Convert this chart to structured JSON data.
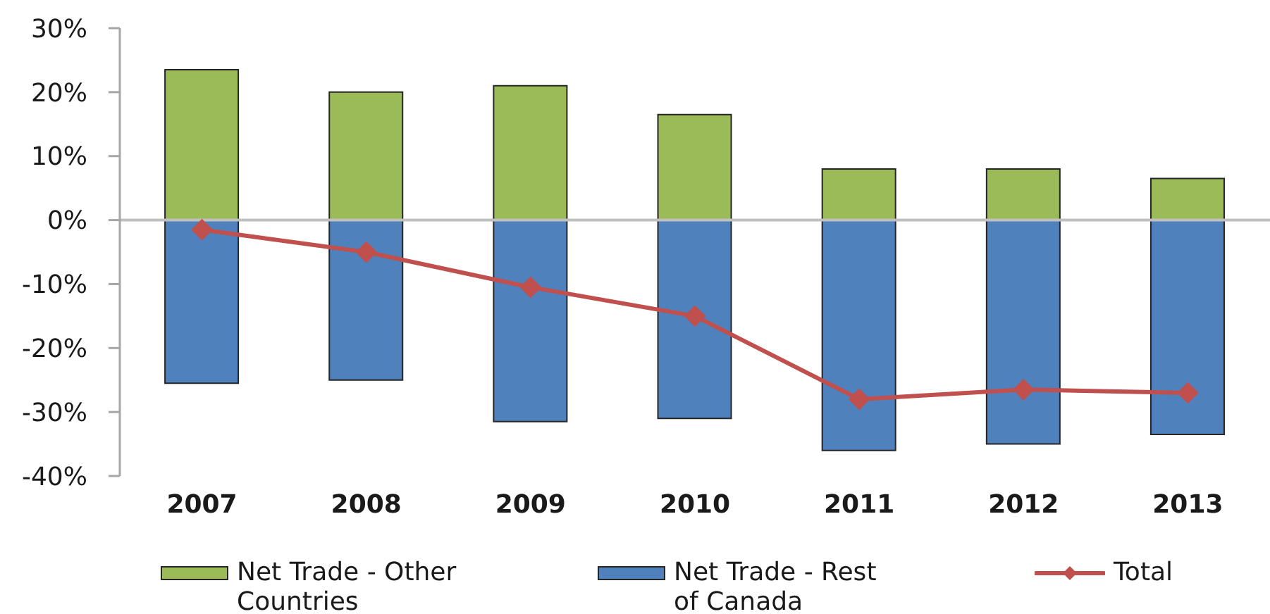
{
  "chart_data": {
    "type": "bar",
    "categories": [
      "2007",
      "2008",
      "2009",
      "2010",
      "2011",
      "2012",
      "2013"
    ],
    "series": [
      {
        "name": "Net Trade - Other Countries",
        "color": "#9bbb59",
        "values": [
          23.5,
          20,
          21,
          16.5,
          8,
          8,
          6.5
        ]
      },
      {
        "name": "Net Trade - Rest of Canada",
        "color": "#4f81bd",
        "values": [
          -25.5,
          -25,
          -31.5,
          -31,
          -36,
          -35,
          -33.5
        ]
      },
      {
        "name": "Total",
        "type": "line",
        "color": "#c0504d",
        "values": [
          -1.5,
          -5,
          -10.5,
          -15,
          -28,
          -26.5,
          -27
        ]
      }
    ],
    "stacked": true,
    "marker": "diamond",
    "legend": "bottom",
    "ylim": [
      -40,
      30
    ],
    "yticks": [
      {
        "value": 30,
        "label": "30%"
      },
      {
        "value": 20,
        "label": "20%"
      },
      {
        "value": 10,
        "label": "10%"
      },
      {
        "value": 0,
        "label": "0%"
      },
      {
        "value": -10,
        "label": "-10%"
      },
      {
        "value": -20,
        "label": "-20%"
      },
      {
        "value": -30,
        "label": "-30%"
      },
      {
        "value": -40,
        "label": "-40%"
      }
    ]
  }
}
